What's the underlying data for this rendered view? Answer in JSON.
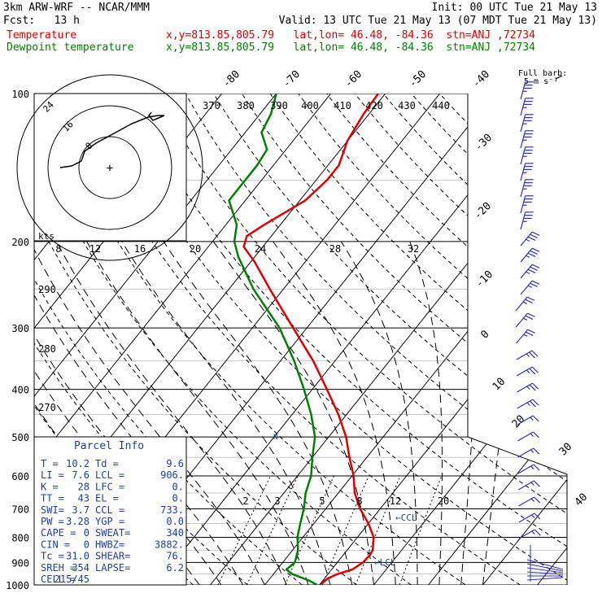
{
  "header": {
    "model": "3km ARW-WRF -- NCAR/MMM",
    "init": "Init: 00 UTC Tue 21 May 13",
    "fcst": "Fcst:   13 h",
    "valid": "Valid: 13 UTC Tue 21 May 13 (07 MDT Tue 21 May 13)",
    "temp_label": "Temperature",
    "temp_info": "x,y=813.85,805.79   lat,lon= 46.48, -84.36  stn=ANJ ,72734",
    "dew_label": "Dewpoint temperature",
    "dew_info": "x,y=813.85,805.79   lat,lon= 46.48, -84.36  stn=ANJ ,72734"
  },
  "colors": {
    "temperature": "#e00000",
    "dewpoint": "#008000",
    "barbs": "#3030c0",
    "parcel": "#2040a0"
  },
  "chart_data": {
    "type": "line",
    "chart_kind": "skew-T log-P sounding",
    "pressure_axis": {
      "levels": [
        100,
        200,
        300,
        400,
        500,
        600,
        700,
        800,
        900,
        1000
      ],
      "scale": "log"
    },
    "isotherm_labels": [
      "-80",
      "-70",
      "-60",
      "-50",
      "-40",
      "-30",
      "-20",
      "-10",
      "0",
      "10",
      "20",
      "30",
      "40"
    ],
    "theta_labels": [
      "370",
      "380",
      "390",
      "400",
      "410",
      "420",
      "430",
      "440"
    ],
    "mixing_ratio_labels": [
      "8",
      "12",
      "16",
      "20",
      "24",
      "28",
      "32"
    ],
    "low_mixing_labels": [
      "2",
      "3",
      "5",
      "8",
      "12",
      "20"
    ],
    "theta_e_labels": [
      "290",
      "280",
      "270"
    ],
    "series": [
      {
        "name": "Temperature",
        "points": [
          [
            1000,
            10.2
          ],
          [
            970,
            10.6
          ],
          [
            950,
            11.8
          ],
          [
            930,
            13.8
          ],
          [
            900,
            14.7
          ],
          [
            870,
            14.9
          ],
          [
            850,
            14.7
          ],
          [
            800,
            13.0
          ],
          [
            750,
            10.0
          ],
          [
            700,
            6.3
          ],
          [
            650,
            3.0
          ],
          [
            600,
            0.3
          ],
          [
            550,
            -3.2
          ],
          [
            500,
            -6.8
          ],
          [
            450,
            -11.5
          ],
          [
            400,
            -17.3
          ],
          [
            350,
            -24.0
          ],
          [
            300,
            -32.5
          ],
          [
            250,
            -42.5
          ],
          [
            220,
            -49.3
          ],
          [
            205,
            -53.5
          ],
          [
            195,
            -54.5
          ],
          [
            185,
            -53.0
          ],
          [
            165,
            -49.0
          ],
          [
            150,
            -48.0
          ],
          [
            140,
            -48.0
          ],
          [
            125,
            -50.0
          ],
          [
            110,
            -51.0
          ],
          [
            100,
            -51.3
          ]
        ]
      },
      {
        "name": "Dewpoint temperature",
        "points": [
          [
            1000,
            9.6
          ],
          [
            980,
            7.5
          ],
          [
            950,
            3.4
          ],
          [
            930,
            1.7
          ],
          [
            900,
            2.2
          ],
          [
            850,
            1.0
          ],
          [
            800,
            -1.0
          ],
          [
            750,
            -2.5
          ],
          [
            700,
            -4.0
          ],
          [
            650,
            -6.0
          ],
          [
            600,
            -7.5
          ],
          [
            550,
            -10.0
          ],
          [
            500,
            -12.5
          ],
          [
            450,
            -16.5
          ],
          [
            400,
            -21.5
          ],
          [
            350,
            -27.5
          ],
          [
            300,
            -35.0
          ],
          [
            250,
            -45.5
          ],
          [
            215,
            -53.0
          ],
          [
            200,
            -56.0
          ],
          [
            185,
            -58.0
          ],
          [
            165,
            -63.0
          ],
          [
            150,
            -63.0
          ],
          [
            140,
            -63.0
          ],
          [
            130,
            -63.5
          ],
          [
            120,
            -67.0
          ],
          [
            110,
            -68.0
          ],
          [
            100,
            -70.0
          ]
        ]
      }
    ],
    "annotations": [
      "CCL",
      "LCL"
    ],
    "wind_barbs": {
      "title": "Full barb:",
      "unit": "5 m s⁻¹"
    },
    "hodograph": {
      "unit": "kts",
      "ring_labels": [
        "8",
        "16",
        "24"
      ]
    }
  },
  "parcel": {
    "title": "Parcel Info",
    "rows": [
      [
        "T  =",
        "10.2",
        "Td  =",
        "9.6"
      ],
      [
        "LI =",
        "7.6",
        "LCL =",
        "906."
      ],
      [
        "K  =",
        "28",
        "LFC =",
        "0."
      ],
      [
        "TT =",
        "43",
        "EL  =",
        "0."
      ],
      [
        "SWI=",
        "3.7",
        "CCL =",
        "733."
      ],
      [
        "PW =",
        "3.28",
        "YGP =",
        "0.0"
      ],
      [
        "CAPE =",
        "0",
        "SWEAT=",
        "340"
      ],
      [
        "CIN  =",
        "0",
        "HWBZ=",
        "3882."
      ],
      [
        "Tc   =",
        "31.0",
        "SHEAR=",
        "76."
      ],
      [
        "SREH =",
        "354",
        "LAPSE=",
        "6.2"
      ],
      [
        "CELL =",
        "215/45",
        "",
        ""
      ]
    ]
  }
}
